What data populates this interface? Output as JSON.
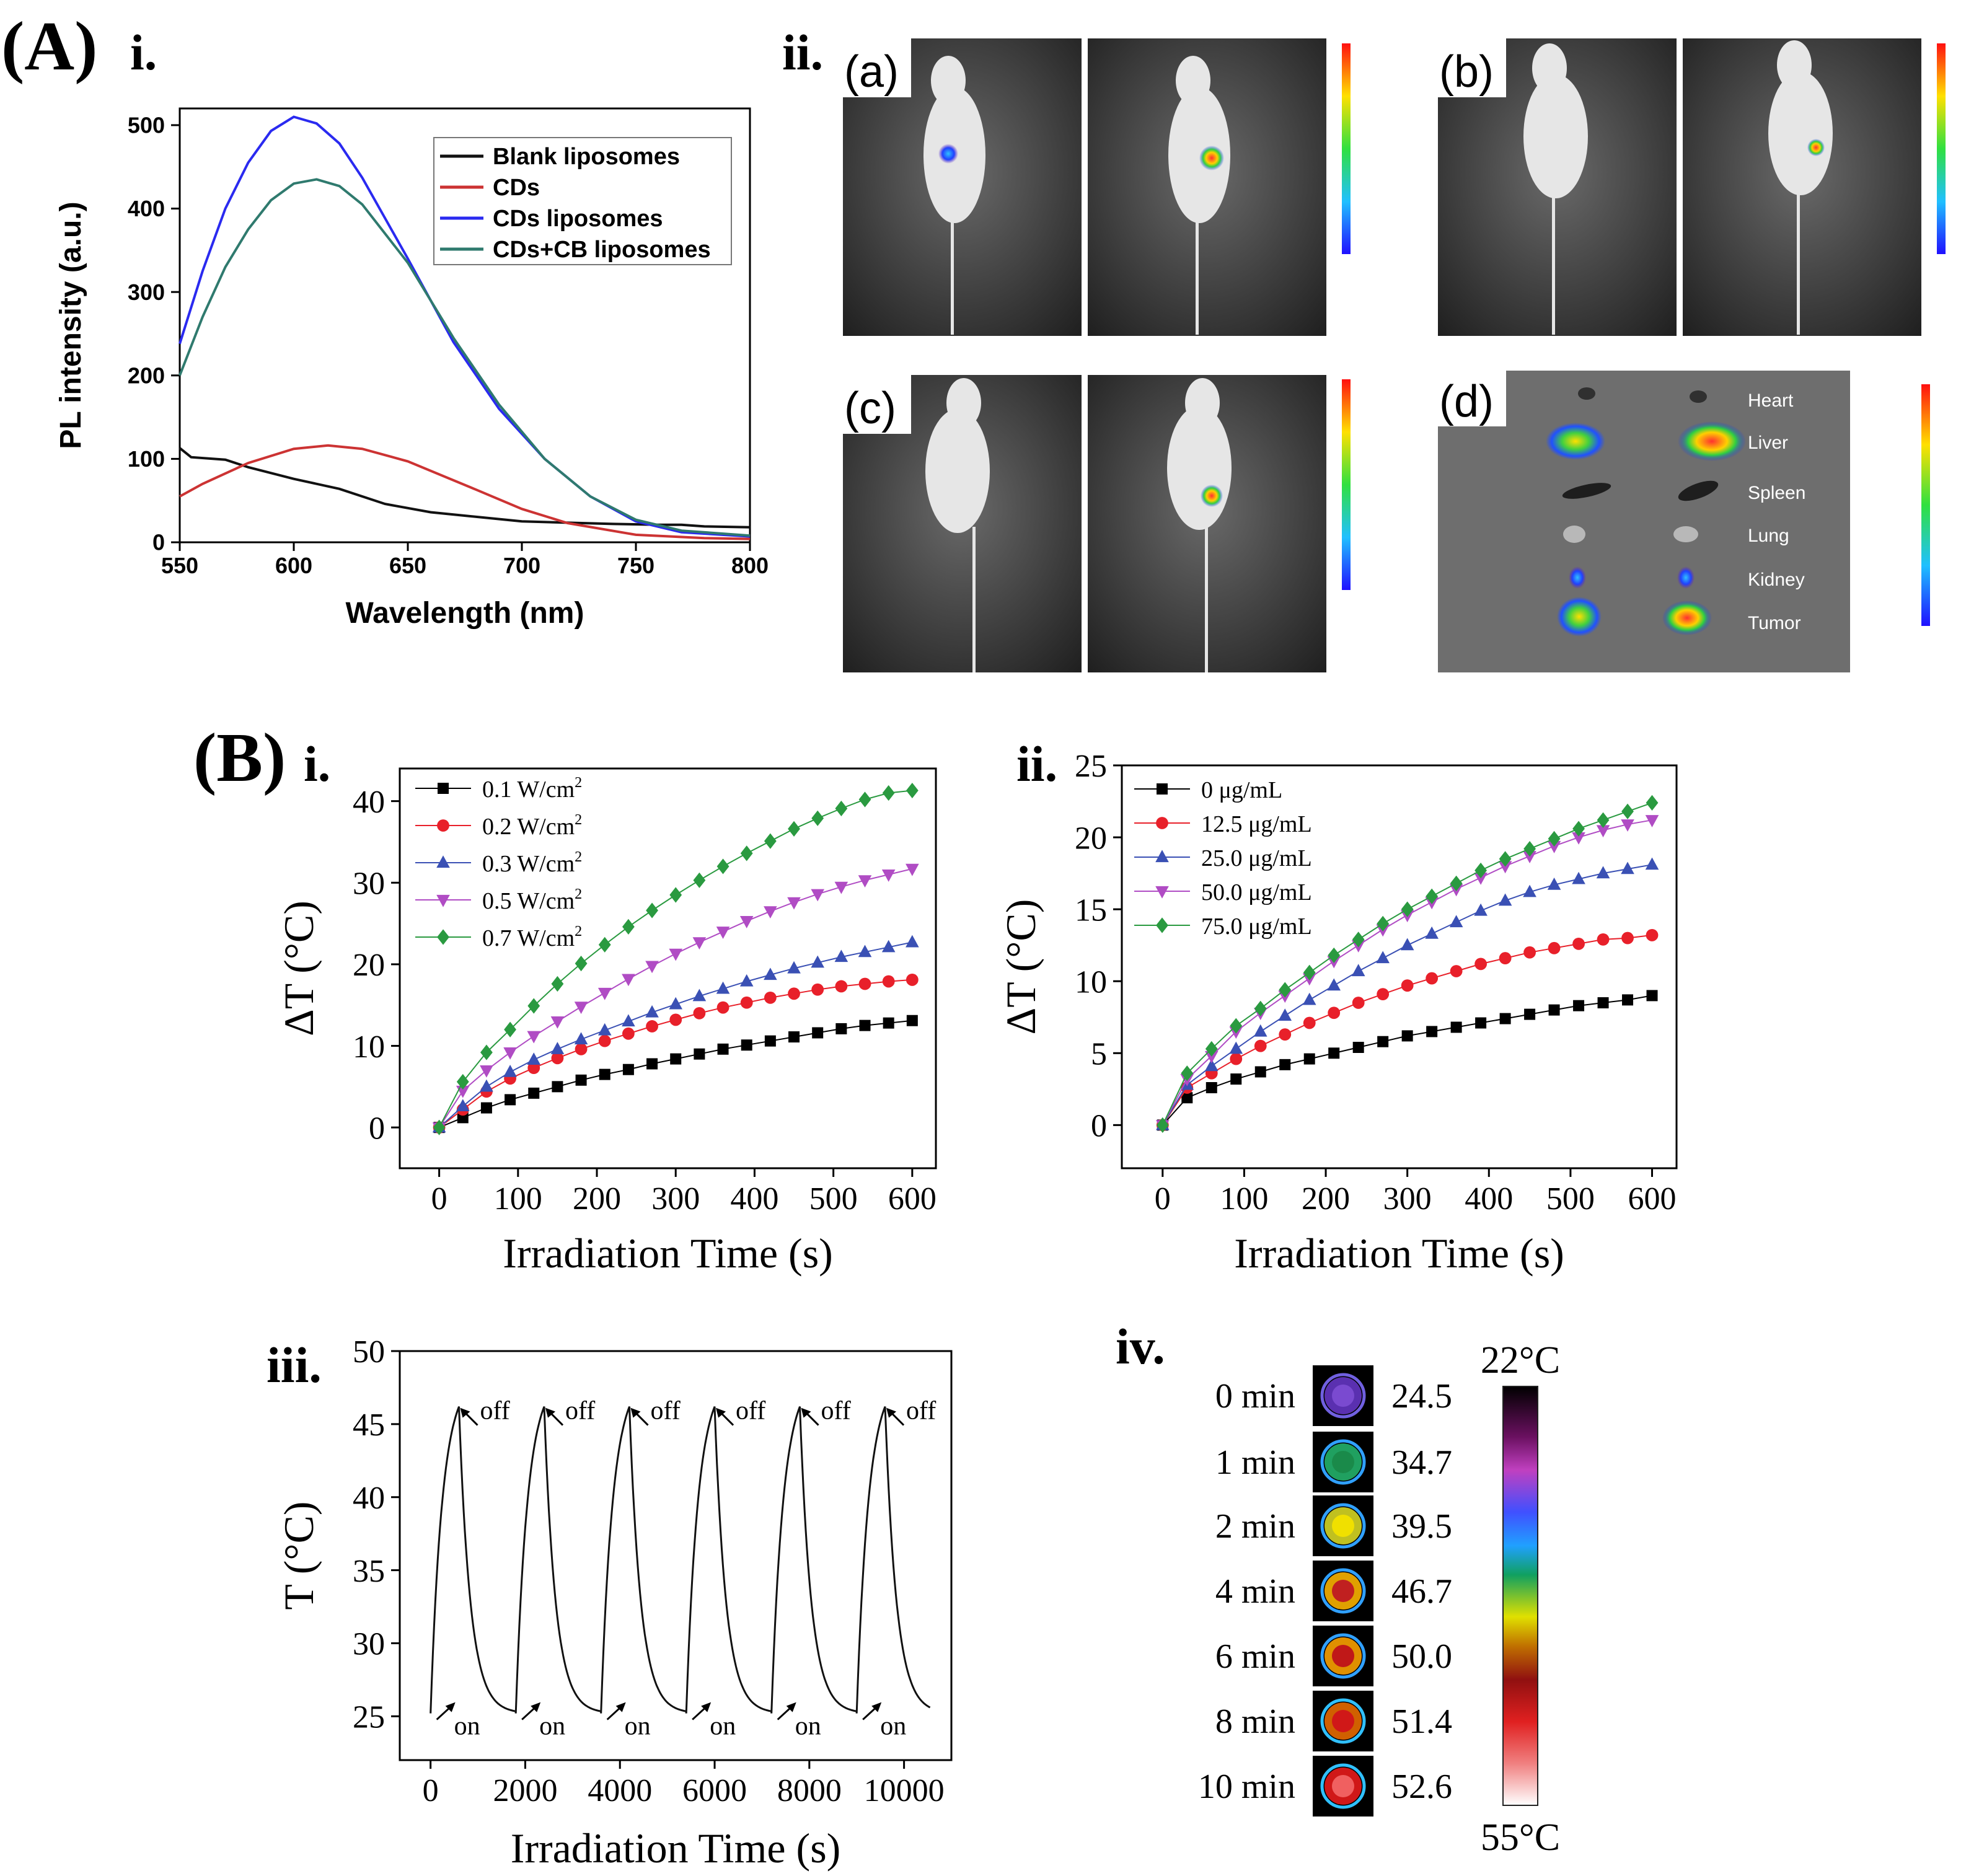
{
  "panel_labels": {
    "A": "(A)",
    "A_i": "i.",
    "A_ii": "ii.",
    "B": "(B)",
    "B_i": "i.",
    "B_ii": "ii.",
    "B_iii": "iii.",
    "B_iv": "iv."
  },
  "imaging": {
    "sub_labels": [
      "(a)",
      "(b)",
      "(c)",
      "(d)"
    ],
    "organs": [
      "Heart",
      "Liver",
      "Spleen",
      "Lung",
      "Kidney",
      "Tumor"
    ]
  },
  "thermal": {
    "times": [
      "0 min",
      "1 min",
      "2 min",
      "4 min",
      "6 min",
      "8 min",
      "10 min"
    ],
    "temps": [
      "24.5",
      "34.7",
      "39.5",
      "46.7",
      "50.0",
      "51.4",
      "52.6"
    ],
    "scale_top": "22°C",
    "scale_bottom": "55°C"
  },
  "colors": {
    "blank": "#111111",
    "cds": "#cc3333",
    "cds_lipo": "#2a2af0",
    "cdscb": "#2f7a6e",
    "s1": "#000000",
    "s2": "#e8202a",
    "s3": "#3a50b4",
    "s4": "#b04cc4",
    "s5": "#2a9a40"
  },
  "chart_data": [
    {
      "type": "line",
      "xlabel": "Wavelength (nm)",
      "ylabel": "PL intensity (a.u.)",
      "xlim": [
        550,
        800
      ],
      "ylim": [
        0,
        520
      ],
      "xticks": [
        550,
        600,
        650,
        700,
        750,
        800
      ],
      "yticks": [
        0,
        100,
        200,
        300,
        400,
        500
      ],
      "legend_position": "top-right",
      "series": [
        {
          "name": "Blank liposomes",
          "color": "blank",
          "x": [
            550,
            555,
            570,
            580,
            600,
            620,
            640,
            660,
            700,
            740,
            760,
            770,
            780,
            800
          ],
          "y": [
            113,
            102,
            99,
            90,
            76,
            64,
            46,
            36,
            25,
            22,
            21,
            21,
            19,
            18
          ]
        },
        {
          "name": "CDs",
          "color": "cds",
          "x": [
            550,
            560,
            580,
            600,
            615,
            630,
            650,
            680,
            700,
            720,
            750,
            780,
            800
          ],
          "y": [
            55,
            70,
            95,
            112,
            116,
            112,
            97,
            63,
            40,
            23,
            9,
            5,
            4
          ]
        },
        {
          "name": "CDs liposomes",
          "color": "cds_lipo",
          "x": [
            550,
            560,
            570,
            580,
            590,
            600,
            610,
            620,
            630,
            650,
            670,
            690,
            710,
            730,
            750,
            770,
            800
          ],
          "y": [
            238,
            325,
            400,
            455,
            493,
            510,
            502,
            478,
            437,
            340,
            240,
            160,
            100,
            55,
            25,
            12,
            7
          ]
        },
        {
          "name": "CDs+CB liposomes",
          "color": "cdscb",
          "x": [
            550,
            560,
            570,
            580,
            590,
            600,
            610,
            620,
            630,
            650,
            670,
            690,
            710,
            730,
            750,
            770,
            800
          ],
          "y": [
            200,
            270,
            330,
            375,
            410,
            430,
            435,
            427,
            405,
            335,
            245,
            165,
            100,
            55,
            27,
            14,
            8
          ]
        }
      ]
    },
    {
      "type": "line",
      "xlabel": "Irradiation Time (s)",
      "ylabel": "ΔT (°C)",
      "xlim": [
        -50,
        630
      ],
      "ylim": [
        -5,
        44
      ],
      "xticks": [
        0,
        100,
        200,
        300,
        400,
        500,
        600
      ],
      "yticks": [
        0,
        10,
        20,
        30,
        40
      ],
      "legend_position": "top-left",
      "x": [
        0,
        30,
        60,
        90,
        120,
        150,
        180,
        210,
        240,
        270,
        300,
        330,
        360,
        390,
        420,
        450,
        480,
        510,
        540,
        570,
        600
      ],
      "series": [
        {
          "name": "0.1 W/cm",
          "sup": "2",
          "color": "s1",
          "marker": "square",
          "values": [
            0,
            1.2,
            2.4,
            3.4,
            4.2,
            5.0,
            5.8,
            6.5,
            7.1,
            7.8,
            8.4,
            9.0,
            9.6,
            10.1,
            10.6,
            11.1,
            11.6,
            12.1,
            12.5,
            12.8,
            13.1
          ]
        },
        {
          "name": "0.2 W/cm",
          "sup": "2",
          "color": "s2",
          "marker": "circle",
          "values": [
            0,
            2.2,
            4.4,
            6.0,
            7.3,
            8.5,
            9.6,
            10.6,
            11.5,
            12.4,
            13.2,
            14.0,
            14.7,
            15.3,
            15.9,
            16.4,
            16.9,
            17.3,
            17.6,
            17.9,
            18.1
          ]
        },
        {
          "name": "0.3 W/cm",
          "sup": "2",
          "color": "s3",
          "marker": "triangle-up",
          "values": [
            0,
            2.6,
            5.0,
            6.8,
            8.3,
            9.6,
            10.8,
            11.9,
            13.0,
            14.1,
            15.1,
            16.1,
            17.0,
            17.9,
            18.7,
            19.5,
            20.2,
            20.9,
            21.5,
            22.1,
            22.7
          ]
        },
        {
          "name": "0.5 W/cm",
          "sup": "2",
          "color": "s4",
          "marker": "triangle-down",
          "values": [
            0,
            4.5,
            7.0,
            9.2,
            11.2,
            13.0,
            14.8,
            16.5,
            18.2,
            19.8,
            21.3,
            22.7,
            24.0,
            25.3,
            26.5,
            27.6,
            28.6,
            29.5,
            30.3,
            31.0,
            31.7
          ]
        },
        {
          "name": "0.7 W/cm",
          "sup": "2",
          "color": "s5",
          "marker": "diamond",
          "values": [
            0,
            5.6,
            9.2,
            12.0,
            14.9,
            17.6,
            20.1,
            22.4,
            24.6,
            26.6,
            28.5,
            30.3,
            32.0,
            33.6,
            35.1,
            36.6,
            37.9,
            39.1,
            40.2,
            41.0,
            41.3
          ]
        }
      ]
    },
    {
      "type": "line",
      "xlabel": "Irradiation Time (s)",
      "ylabel": "ΔT (°C)",
      "xlim": [
        -50,
        630
      ],
      "ylim": [
        -3,
        25
      ],
      "xticks": [
        0,
        100,
        200,
        300,
        400,
        500,
        600
      ],
      "yticks": [
        0,
        5,
        10,
        15,
        20,
        25
      ],
      "legend_position": "top-left",
      "x": [
        0,
        30,
        60,
        90,
        120,
        150,
        180,
        210,
        240,
        270,
        300,
        330,
        360,
        390,
        420,
        450,
        480,
        510,
        540,
        570,
        600
      ],
      "series": [
        {
          "name": "0 μg/mL",
          "color": "s1",
          "marker": "square",
          "values": [
            0,
            1.9,
            2.6,
            3.2,
            3.7,
            4.2,
            4.6,
            5.0,
            5.4,
            5.8,
            6.2,
            6.5,
            6.8,
            7.1,
            7.4,
            7.7,
            8.0,
            8.3,
            8.5,
            8.7,
            9.0
          ]
        },
        {
          "name": "12.5 μg/mL",
          "color": "s2",
          "marker": "circle",
          "values": [
            0,
            2.6,
            3.6,
            4.6,
            5.5,
            6.3,
            7.1,
            7.8,
            8.5,
            9.1,
            9.7,
            10.2,
            10.7,
            11.2,
            11.6,
            12.0,
            12.3,
            12.6,
            12.9,
            13.0,
            13.2
          ]
        },
        {
          "name": "25.0 μg/mL",
          "color": "s3",
          "marker": "triangle-up",
          "values": [
            0,
            2.8,
            4.1,
            5.3,
            6.5,
            7.6,
            8.7,
            9.7,
            10.7,
            11.6,
            12.5,
            13.3,
            14.1,
            14.9,
            15.6,
            16.2,
            16.7,
            17.1,
            17.5,
            17.8,
            18.1
          ]
        },
        {
          "name": "50.0 μg/mL",
          "color": "s4",
          "marker": "triangle-down",
          "values": [
            0,
            3.2,
            4.8,
            6.5,
            7.8,
            9.0,
            10.2,
            11.4,
            12.5,
            13.6,
            14.6,
            15.5,
            16.4,
            17.2,
            18.0,
            18.7,
            19.4,
            20.0,
            20.5,
            20.9,
            21.2
          ]
        },
        {
          "name": "75.0 μg/mL",
          "color": "s5",
          "marker": "diamond",
          "values": [
            0,
            3.6,
            5.3,
            6.9,
            8.1,
            9.4,
            10.6,
            11.8,
            12.9,
            14.0,
            15.0,
            15.9,
            16.8,
            17.7,
            18.5,
            19.2,
            19.9,
            20.6,
            21.2,
            21.8,
            22.4
          ]
        }
      ]
    },
    {
      "type": "line",
      "xlabel": "Irradiation Time (s)",
      "ylabel": "T (°C)",
      "xlim": [
        -650,
        11000
      ],
      "ylim": [
        22,
        50
      ],
      "xticks": [
        0,
        2000,
        4000,
        6000,
        8000,
        10000
      ],
      "yticks": [
        25,
        30,
        35,
        40,
        45,
        50
      ],
      "cycle_period": 1800,
      "cycles": 6,
      "heat_time": 600,
      "T_start": 25.2,
      "T_peak": 46.2,
      "annotations": {
        "on": "on",
        "off": "off"
      }
    }
  ]
}
